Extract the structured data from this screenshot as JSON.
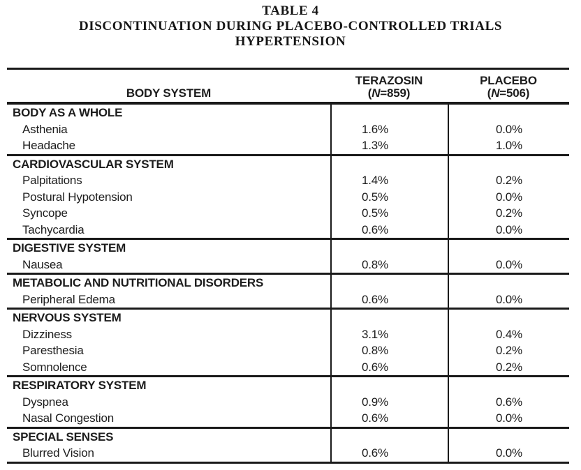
{
  "title": {
    "line1": "TABLE 4",
    "line2": "DISCONTINUATION DURING PLACEBO-CONTROLLED TRIALS",
    "line3": "HYPERTENSION"
  },
  "table": {
    "columns": [
      {
        "label": "BODY SYSTEM"
      },
      {
        "label": "TERAZOSIN",
        "n_open": "(",
        "n_italic": "N",
        "n_rest": "=859)"
      },
      {
        "label": "PLACEBO",
        "n_open": "(",
        "n_italic": "N",
        "n_rest": "=506)"
      }
    ],
    "sections": [
      {
        "name": "BODY AS A WHOLE",
        "rows": [
          {
            "label": "Asthenia",
            "terazosin": "1.6%",
            "placebo": "0.0%"
          },
          {
            "label": "Headache",
            "terazosin": "1.3%",
            "placebo": "1.0%"
          }
        ]
      },
      {
        "name": "CARDIOVASCULAR SYSTEM",
        "rows": [
          {
            "label": "Palpitations",
            "terazosin": "1.4%",
            "placebo": "0.2%"
          },
          {
            "label": "Postural Hypotension",
            "terazosin": "0.5%",
            "placebo": "0.0%"
          },
          {
            "label": "Syncope",
            "terazosin": "0.5%",
            "placebo": "0.2%"
          },
          {
            "label": "Tachycardia",
            "terazosin": "0.6%",
            "placebo": "0.0%"
          }
        ]
      },
      {
        "name": "DIGESTIVE SYSTEM",
        "rows": [
          {
            "label": "Nausea",
            "terazosin": "0.8%",
            "placebo": "0.0%"
          }
        ]
      },
      {
        "name": "METABOLIC AND NUTRITIONAL DISORDERS",
        "rows": [
          {
            "label": "Peripheral Edema",
            "terazosin": "0.6%",
            "placebo": "0.0%"
          }
        ]
      },
      {
        "name": "NERVOUS SYSTEM",
        "rows": [
          {
            "label": "Dizziness",
            "terazosin": "3.1%",
            "placebo": "0.4%"
          },
          {
            "label": "Paresthesia",
            "terazosin": "0.8%",
            "placebo": "0.2%"
          },
          {
            "label": "Somnolence",
            "terazosin": "0.6%",
            "placebo": "0.2%"
          }
        ]
      },
      {
        "name": "RESPIRATORY SYSTEM",
        "rows": [
          {
            "label": "Dyspnea",
            "terazosin": "0.9%",
            "placebo": "0.6%"
          },
          {
            "label": "Nasal Congestion",
            "terazosin": "0.6%",
            "placebo": "0.0%"
          }
        ]
      },
      {
        "name": "SPECIAL SENSES",
        "rows": [
          {
            "label": "Blurred Vision",
            "terazosin": "0.6%",
            "placebo": "0.0%"
          }
        ]
      }
    ]
  },
  "colors": {
    "rule": "#1a1a1a",
    "text": "#1d1d1d",
    "background": "#ffffff"
  }
}
